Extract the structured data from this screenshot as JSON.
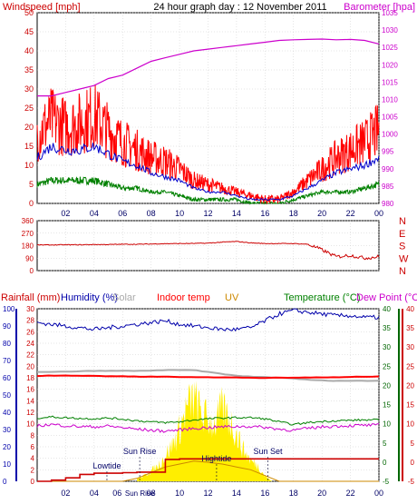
{
  "header": {
    "left_title": "Windspeed [mph]",
    "center_title": "24 hour graph day : 12 November 2011",
    "right_title": "Barometer [hpa]"
  },
  "colors": {
    "wind_gust": "#ff0000",
    "wind_avg": "#0000cc",
    "wind_low": "#008000",
    "barometer": "#cc00cc",
    "direction": "#cc0000",
    "rain": "#cc0000",
    "humidity": "#0000aa",
    "solar": "#aaaaaa",
    "indoor": "#ff0000",
    "uv": "#cc8800",
    "temperature": "#008000",
    "dewpoint": "#cc00cc",
    "sun": "#ffee00",
    "frame": "#000000",
    "grid": "#cccccc",
    "axis_green": "#006600",
    "axis_red": "#cc0000",
    "axis_blue": "#0000aa"
  },
  "x_ticks": [
    "02",
    "04",
    "06",
    "08",
    "10",
    "12",
    "14",
    "16",
    "18",
    "20",
    "22",
    "00"
  ],
  "chart_data": [
    {
      "type": "line",
      "title": "Windspeed [mph]",
      "right_axis_title": "Barometer [hpa]",
      "x_range_hours": [
        0,
        24
      ],
      "ylim": [
        0,
        50
      ],
      "yticks": [
        0,
        5,
        10,
        15,
        20,
        25,
        30,
        35,
        40,
        45,
        50
      ],
      "ylim_right": [
        1035,
        980
      ],
      "yticks_right": [
        980,
        985,
        990,
        995,
        1000,
        1005,
        1010,
        1015,
        1020,
        1025,
        1030,
        1035
      ],
      "series": [
        {
          "name": "Gust",
          "x": [
            0,
            1,
            2,
            3,
            4,
            5,
            6,
            7,
            8,
            9,
            10,
            11,
            12,
            13,
            14,
            15,
            16,
            17,
            18,
            19,
            20,
            21,
            22,
            23,
            24
          ],
          "y": [
            18,
            22,
            20,
            21,
            23,
            19,
            16,
            14,
            12,
            11,
            9,
            6,
            5,
            4,
            3,
            2,
            1,
            1,
            3,
            6,
            9,
            12,
            14,
            16,
            19
          ]
        },
        {
          "name": "Average",
          "x": [
            0,
            1,
            2,
            3,
            4,
            5,
            6,
            7,
            8,
            9,
            10,
            11,
            12,
            13,
            14,
            15,
            16,
            17,
            18,
            19,
            20,
            21,
            22,
            23,
            24
          ],
          "y": [
            12,
            15,
            14,
            14,
            15,
            13,
            11,
            10,
            8,
            7,
            6,
            4,
            3,
            3,
            2,
            1,
            1,
            1,
            2,
            4,
            6,
            8,
            9,
            10,
            12
          ]
        },
        {
          "name": "Low",
          "x": [
            0,
            1,
            2,
            3,
            4,
            5,
            6,
            7,
            8,
            9,
            10,
            11,
            12,
            13,
            14,
            15,
            16,
            17,
            18,
            19,
            20,
            21,
            22,
            23,
            24
          ],
          "y": [
            5,
            6,
            6,
            6,
            6,
            5,
            4,
            4,
            3,
            3,
            2,
            1,
            1,
            1,
            1,
            0,
            0,
            0,
            1,
            2,
            3,
            3,
            3,
            4,
            5
          ]
        },
        {
          "name": "Barometer",
          "x": [
            0,
            1,
            2,
            3,
            4,
            5,
            6,
            7,
            8,
            9,
            10,
            11,
            12,
            13,
            14,
            15,
            16,
            17,
            18,
            19,
            20,
            21,
            22,
            23,
            24
          ],
          "y": [
            1011,
            1011,
            1012,
            1013,
            1014,
            1016,
            1017,
            1019,
            1021,
            1022,
            1023,
            1024,
            1024.5,
            1025,
            1025.5,
            1026,
            1026.5,
            1027,
            1027.2,
            1027.3,
            1027.4,
            1027.2,
            1027.3,
            1027,
            1026
          ]
        }
      ]
    },
    {
      "type": "line",
      "title": "Wind direction",
      "ylim": [
        0,
        360
      ],
      "yticks": [
        0,
        90,
        180,
        270,
        360
      ],
      "compass_labels": [
        "N",
        "W",
        "S",
        "E",
        "N"
      ],
      "series": [
        {
          "name": "Direction",
          "x": [
            0,
            1,
            2,
            3,
            4,
            5,
            6,
            7,
            8,
            9,
            10,
            11,
            12,
            13,
            14,
            15,
            16,
            17,
            18,
            19,
            20,
            21,
            22,
            23,
            24
          ],
          "y": [
            185,
            185,
            186,
            186,
            188,
            188,
            190,
            190,
            192,
            194,
            195,
            196,
            198,
            205,
            210,
            200,
            195,
            195,
            195,
            190,
            150,
            100,
            110,
            90,
            100
          ]
        }
      ]
    },
    {
      "type": "line",
      "legend": [
        "Rainfall (mm)",
        "Humidity (%)",
        "Solar",
        "Indoor temp",
        "UV",
        "Temperature (°C)",
        "Dew Point (°C)"
      ],
      "ylim_humidity": [
        0,
        100
      ],
      "yticks_humidity": [
        0,
        10,
        20,
        30,
        40,
        50,
        60,
        70,
        80,
        90,
        100
      ],
      "ylim_rain": [
        0,
        30
      ],
      "yticks_rain": [
        0,
        2,
        4,
        6,
        8,
        10,
        12,
        14,
        16,
        18,
        20,
        22,
        24,
        26,
        28,
        30
      ],
      "ylim_temp": [
        -5,
        40
      ],
      "yticks_temp": [
        -5,
        0,
        5,
        10,
        15,
        20,
        25,
        30,
        35,
        40
      ],
      "annotations": [
        {
          "label": "Lowtide",
          "x_hour": 4.9
        },
        {
          "label": "Sun Rise",
          "x_hour": 7.2
        },
        {
          "label": "Hightide",
          "x_hour": 12.6
        },
        {
          "label": "Sun Set",
          "x_hour": 16.2
        }
      ],
      "x_annotation": "Sun Rise",
      "series": [
        {
          "name": "Humidity",
          "x": [
            0,
            1,
            2,
            3,
            4,
            5,
            6,
            7,
            8,
            9,
            10,
            11,
            12,
            13,
            14,
            15,
            16,
            17,
            18,
            19,
            20,
            21,
            22,
            23,
            24
          ],
          "y": [
            92,
            91,
            90,
            89,
            88,
            89,
            90,
            91,
            92,
            93,
            91,
            90,
            89,
            88,
            88,
            89,
            93,
            97,
            99,
            98,
            97,
            96,
            96,
            95,
            95
          ]
        },
        {
          "name": "Solar",
          "x": [
            0,
            1,
            2,
            3,
            4,
            5,
            6,
            7,
            8,
            9,
            10,
            11,
            12,
            13,
            14,
            15,
            16,
            17,
            18,
            19,
            20,
            21,
            22,
            23,
            24
          ],
          "y": [
            23.5,
            23.5,
            23.6,
            23.7,
            23.8,
            23.8,
            23.8,
            23.8,
            23.9,
            24,
            24,
            24,
            23.5,
            23,
            22.5,
            22.3,
            22.2,
            22,
            21.8,
            21.5,
            21.3,
            21.2,
            21.2,
            21.2,
            21.2
          ]
        },
        {
          "name": "Indoor temp",
          "x": [
            0,
            1,
            2,
            3,
            4,
            5,
            6,
            7,
            8,
            9,
            10,
            11,
            12,
            13,
            14,
            15,
            16,
            17,
            18,
            19,
            20,
            21,
            22,
            23,
            24
          ],
          "y": [
            22.5,
            22.6,
            22.6,
            22.5,
            22.5,
            22.4,
            22.4,
            22.3,
            22.3,
            22.3,
            22.2,
            22.2,
            22.1,
            22.1,
            22.1,
            22,
            22,
            22,
            22,
            22.1,
            22.1,
            22.1,
            22.2,
            22.3,
            22.3
          ]
        },
        {
          "name": "Temperature",
          "x": [
            0,
            1,
            2,
            3,
            4,
            5,
            6,
            7,
            8,
            9,
            10,
            11,
            12,
            13,
            14,
            15,
            16,
            17,
            18,
            19,
            20,
            21,
            22,
            23,
            24
          ],
          "y": [
            11.5,
            11.8,
            11.6,
            11.4,
            11.3,
            11.5,
            11.2,
            10.8,
            10.5,
            10.3,
            10.5,
            11,
            11.3,
            11.5,
            11.6,
            11.6,
            11.3,
            10.5,
            9.8,
            10.3,
            10.6,
            10.8,
            10.9,
            11,
            11
          ]
        },
        {
          "name": "Dew Point",
          "x": [
            0,
            1,
            2,
            3,
            4,
            5,
            6,
            7,
            8,
            9,
            10,
            11,
            12,
            13,
            14,
            15,
            16,
            17,
            18,
            19,
            20,
            21,
            22,
            23,
            24
          ],
          "y": [
            9.5,
            9.8,
            9.5,
            9.3,
            9.2,
            9.4,
            9,
            8.6,
            8.3,
            8.1,
            8.4,
            8.8,
            9,
            9.2,
            9.3,
            9.3,
            9.1,
            8.6,
            8.3,
            8.8,
            9.2,
            9.4,
            9.5,
            9.6,
            9.6
          ]
        },
        {
          "name": "Rainfall",
          "x": [
            0,
            1,
            2,
            3,
            4,
            5,
            6,
            7,
            8,
            9,
            10,
            11,
            12,
            13,
            14,
            15,
            16,
            17,
            18,
            19,
            20,
            21,
            22,
            23,
            24
          ],
          "y": [
            0,
            0.2,
            0.6,
            1.2,
            1.4,
            1.4,
            1.5,
            1.6,
            1.6,
            3.8,
            3.9,
            3.9,
            3.9,
            3.9,
            3.9,
            3.9,
            3.9,
            3.9,
            3.9,
            3.9,
            3.9,
            3.9,
            3.9,
            3.9,
            3.9
          ]
        },
        {
          "name": "UV",
          "x": [
            0,
            6,
            7,
            8,
            9,
            10,
            11,
            12,
            13,
            14,
            15,
            16,
            17,
            24
          ],
          "y": [
            0,
            0,
            0.5,
            1.5,
            2.5,
            3,
            3.5,
            3.3,
            3,
            2.5,
            2,
            1,
            0,
            0
          ]
        },
        {
          "name": "Solar radiation",
          "x": [
            7,
            7.5,
            8,
            8.5,
            9,
            9.5,
            10,
            10.5,
            11,
            11.5,
            12,
            12.5,
            13,
            13.5,
            14,
            14.5,
            15,
            15.5,
            16,
            16.5
          ],
          "y": [
            0.5,
            1,
            2,
            3,
            5,
            7,
            10,
            14,
            16,
            13,
            12,
            11,
            14,
            12,
            9,
            6,
            4,
            3,
            1,
            0
          ]
        }
      ]
    }
  ]
}
